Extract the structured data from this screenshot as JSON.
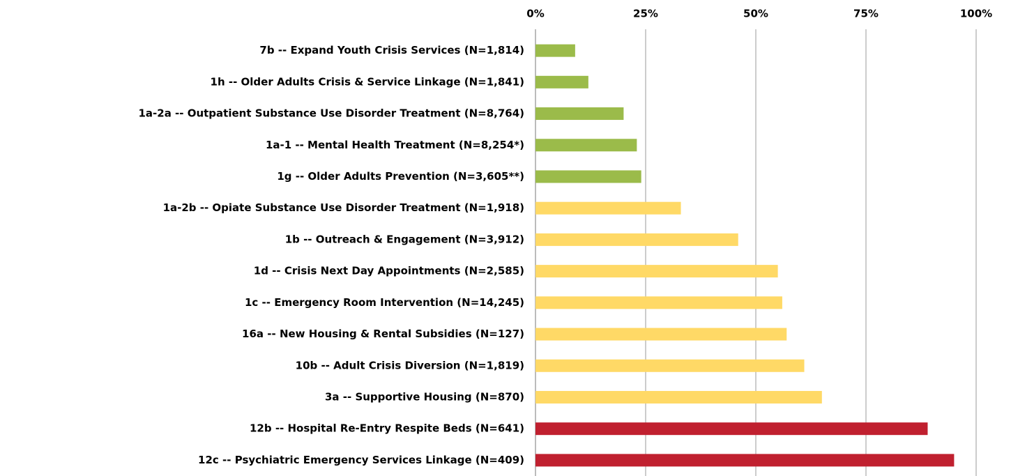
{
  "chart_data": {
    "type": "hbar",
    "categories": [
      "7b -- Expand Youth Crisis Services (N=1,814)",
      "1h -- Older Adults Crisis & Service Linkage (N=1,841)",
      "1a-2a -- Outpatient Substance Use Disorder Treatment (N=8,764)",
      "1a-1 -- Mental Health Treatment (N=8,254*)",
      "1g -- Older Adults Prevention (N=3,605**)",
      "1a-2b -- Opiate Substance Use Disorder Treatment (N=1,918)",
      "1b -- Outreach & Engagement (N=3,912)",
      "1d -- Crisis Next Day Appointments (N=2,585)",
      "1c -- Emergency Room Intervention (N=14,245)",
      "16a -- New Housing & Rental Subsidies (N=127)",
      "10b -- Adult Crisis Diversion (N=1,819)",
      "3a -- Supportive Housing (N=870)",
      "12b -- Hospital Re-Entry Respite Beds (N=641)",
      "12c -- Psychiatric Emergency Services Linkage (N=409)"
    ],
    "values": [
      9,
      12,
      20,
      23,
      24,
      33,
      46,
      55,
      56,
      57,
      61,
      65,
      89,
      95
    ],
    "colors": [
      "#9bbb4a",
      "#9bbb4a",
      "#9bbb4a",
      "#9bbb4a",
      "#9bbb4a",
      "#ffd966",
      "#ffd966",
      "#ffd966",
      "#ffd966",
      "#ffd966",
      "#ffd966",
      "#ffd966",
      "#c0202f",
      "#c0202f"
    ],
    "xlim": [
      0,
      100
    ],
    "xticks": [
      {
        "value": 0,
        "label": "0%"
      },
      {
        "value": 25,
        "label": "25%"
      },
      {
        "value": 50,
        "label": "50%"
      },
      {
        "value": 75,
        "label": "75%"
      },
      {
        "value": 100,
        "label": "100%"
      }
    ],
    "grid": true
  }
}
